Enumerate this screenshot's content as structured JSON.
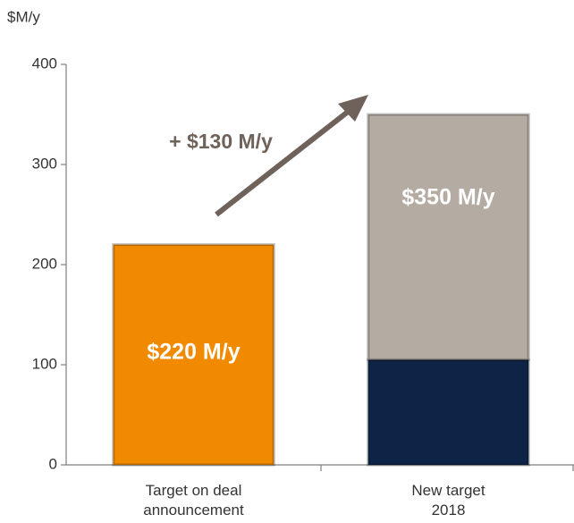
{
  "chart_data": {
    "type": "stacked_bar",
    "ylabel": "$M/y",
    "categories": [
      "Target on deal announcement",
      "New target 2018"
    ],
    "series": [
      {
        "color": "#f28a00",
        "values": [
          220,
          null
        ]
      },
      {
        "color": "#0d2447",
        "values": [
          null,
          105
        ]
      },
      {
        "color": "#b4aba3",
        "values": [
          null,
          245
        ]
      }
    ],
    "total_labels": [
      "$220 M/y",
      "$350 M/y"
    ],
    "annotation": "+ $130 M/y",
    "ylim": [
      0,
      400
    ],
    "yticks": [
      0,
      100,
      200,
      300,
      400
    ],
    "grid": false
  }
}
